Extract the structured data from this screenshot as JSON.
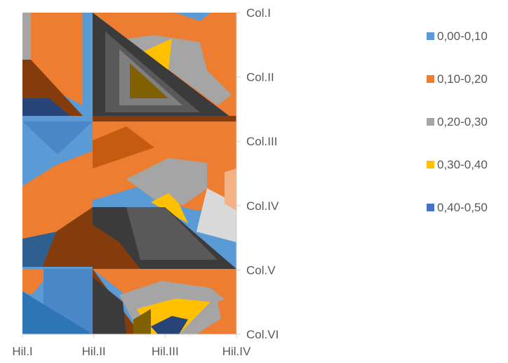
{
  "chart_data": {
    "type": "surface-contour",
    "title": "",
    "xlabel": "",
    "ylabel": "",
    "x_categories": [
      "Hil.I",
      "Hil.II",
      "Hil.III",
      "Hil.IV"
    ],
    "y_categories": [
      "Col.I",
      "Col.II",
      "Col.III",
      "Col.IV",
      "Col.V",
      "Col.VI"
    ],
    "value_bands": [
      {
        "label": "0,00-0,10",
        "range": [
          0.0,
          0.1
        ],
        "color": "#5b9bd5"
      },
      {
        "label": "0,10-0,20",
        "range": [
          0.1,
          0.2
        ],
        "color": "#ed7d31"
      },
      {
        "label": "0,20-0,30",
        "range": [
          0.2,
          0.3
        ],
        "color": "#a5a5a5"
      },
      {
        "label": "0,30-0,40",
        "range": [
          0.3,
          0.4
        ],
        "color": "#ffc000"
      },
      {
        "label": "0,40-0,50",
        "range": [
          0.4,
          0.5
        ],
        "color": "#4472c4"
      }
    ],
    "z_values": [
      [
        0.15,
        0.05,
        0.15,
        0.15
      ],
      [
        0.12,
        0.15,
        0.45,
        0.15
      ],
      [
        0.08,
        0.12,
        0.15,
        0.12
      ],
      [
        0.12,
        0.2,
        0.35,
        0.25
      ],
      [
        0.1,
        0.15,
        0.2,
        0.2
      ],
      [
        0.08,
        0.12,
        0.4,
        0.22
      ]
    ],
    "legend_position": "right",
    "grid": false
  }
}
